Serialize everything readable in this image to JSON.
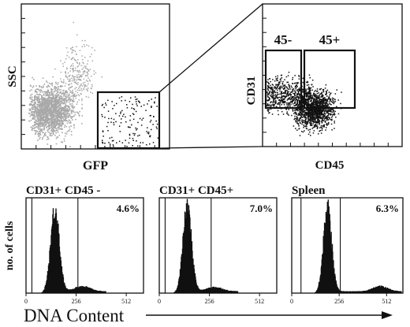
{
  "chart_data": [
    {
      "type": "scatter",
      "xlabel": "GFP",
      "ylabel": "SSC",
      "gate": "GFP-positive cells"
    },
    {
      "type": "scatter",
      "xlabel": "CD45",
      "ylabel": "CD31",
      "gates": [
        {
          "label": "45-"
        },
        {
          "label": "45+"
        }
      ]
    },
    {
      "type": "histogram",
      "title": "CD31+ CD45 -",
      "percent_label": "4.6%",
      "x_ticks": [
        "0",
        "256",
        "512"
      ],
      "peak_x": 145,
      "secondary_peak_x": 285,
      "secondary_height": 0.06,
      "gate_x": [
        30,
        265
      ]
    },
    {
      "type": "histogram",
      "title": "CD31+ CD45+",
      "percent_label": "7.0%",
      "x_ticks": [
        "0",
        "256",
        "512"
      ],
      "peak_x": 140,
      "secondary_peak_x": 280,
      "secondary_height": 0.05,
      "gate_x": [
        30,
        265
      ]
    },
    {
      "type": "histogram",
      "title": "Spleen",
      "percent_label": "6.3%",
      "x_ticks": [
        "0",
        "256",
        "512"
      ],
      "peak_x": 190,
      "secondary_peak_x": 475,
      "secondary_height": 0.06,
      "gate_x": [
        50,
        262
      ]
    }
  ],
  "shared": {
    "histogram_ylabel": "no. of cells",
    "histogram_xlabel": "DNA Content",
    "colors": {
      "ink": "#111111",
      "gray_cells": "#a8a8a8"
    }
  }
}
